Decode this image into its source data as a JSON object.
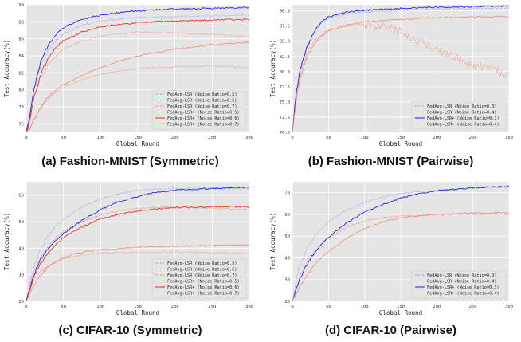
{
  "figure": {
    "colors": {
      "blue": "#1a1ae6",
      "red": "#e0301e",
      "lightblue": "#8aa8f0",
      "salmon": "#f0907c",
      "background": "#e5e5e5"
    },
    "common_xlabel": "Global Round",
    "common_ylabel": "Test Accuracy(%)"
  },
  "chart_data": [
    {
      "type": "line",
      "title": "",
      "caption": "(a) Fashion-MNIST (Symmetric)",
      "xlabel": "Global Round",
      "ylabel": "Test Accuracy(%)",
      "xlim": [
        0,
        300
      ],
      "ylim": [
        75,
        90
      ],
      "xticks": [
        0,
        50,
        100,
        150,
        200,
        250,
        300
      ],
      "yticks": [
        76,
        78,
        80,
        82,
        84,
        86,
        88,
        90
      ],
      "grid": true,
      "legend": "bottom-right",
      "series": [
        {
          "name": "FedAvg-LSR (Noise Ratio=0.5)",
          "color": "#8aa8f0",
          "style": "dashed",
          "x": [
            0,
            5,
            10,
            20,
            30,
            40,
            50,
            75,
            100,
            125,
            150,
            200,
            250,
            300
          ],
          "y": [
            75,
            77,
            80,
            83,
            84.7,
            85.8,
            86.6,
            87.6,
            88.1,
            88.3,
            88.5,
            88.6,
            88.7,
            88.8
          ]
        },
        {
          "name": "FedAvg-LSR (Noise Ratio=0.6)",
          "color": "#f0907c",
          "style": "dashed",
          "x": [
            0,
            5,
            10,
            20,
            30,
            40,
            50,
            75,
            100,
            125,
            150,
            200,
            250,
            300
          ],
          "y": [
            75,
            76.5,
            79,
            81.5,
            83,
            84,
            84.8,
            85.7,
            86.3,
            86.6,
            86.8,
            86.7,
            86.5,
            86.3
          ]
        },
        {
          "name": "FedAvg-LSR (Noise Ratio=0.7)",
          "color": "#f0907c",
          "style": "dashed",
          "x": [
            0,
            5,
            10,
            20,
            30,
            40,
            50,
            75,
            100,
            125,
            150,
            200,
            250,
            300
          ],
          "y": [
            75,
            75.5,
            76.5,
            78,
            79,
            79.7,
            80.3,
            81.2,
            81.8,
            82.2,
            82.5,
            82.7,
            82.8,
            82.6
          ]
        },
        {
          "name": "FedAvg-LSR+ (Noise Ratio=0.5)",
          "color": "#1a1ae6",
          "style": "solid",
          "x": [
            0,
            5,
            10,
            20,
            30,
            40,
            50,
            75,
            100,
            125,
            150,
            200,
            250,
            300
          ],
          "y": [
            75,
            77,
            80,
            83.5,
            85.3,
            86.5,
            87.3,
            88.3,
            88.8,
            89.1,
            89.3,
            89.5,
            89.6,
            89.7
          ]
        },
        {
          "name": "FedAvg-LSR+ (Noise Ratio=0.6)",
          "color": "#e0301e",
          "style": "solid",
          "x": [
            0,
            5,
            10,
            20,
            30,
            40,
            50,
            75,
            100,
            125,
            150,
            200,
            250,
            300
          ],
          "y": [
            75,
            76.5,
            79,
            82,
            83.8,
            85,
            85.8,
            86.8,
            87.4,
            87.7,
            87.9,
            88.1,
            88.2,
            88.3
          ]
        },
        {
          "name": "FedAvg-LSR+ (Noise Ratio=0.7)",
          "color": "#f0907c",
          "style": "solid",
          "x": [
            0,
            5,
            10,
            20,
            30,
            40,
            50,
            75,
            100,
            125,
            150,
            200,
            250,
            300
          ],
          "y": [
            75,
            75.5,
            76.5,
            78,
            79.2,
            80,
            80.6,
            81.7,
            82.6,
            83.4,
            84,
            84.8,
            85.3,
            85.6
          ]
        }
      ]
    },
    {
      "type": "line",
      "title": "",
      "caption": "(b) Fashion-MNIST (Pairwise)",
      "xlabel": "Global Round",
      "ylabel": "Test Accuracy(%)",
      "xlim": [
        0,
        300
      ],
      "ylim": [
        70,
        91
      ],
      "xticks": [
        0,
        50,
        100,
        150,
        200,
        250,
        300
      ],
      "yticks": [
        70.0,
        72.5,
        75.0,
        77.5,
        80.0,
        82.5,
        85.0,
        87.5,
        90.0
      ],
      "grid": true,
      "legend": "bottom-right",
      "series": [
        {
          "name": "FedAvg-LSR (Noise Ratio=0.3)",
          "color": "#8aa8f0",
          "style": "dashed",
          "x": [
            0,
            5,
            10,
            20,
            30,
            40,
            50,
            75,
            100,
            150,
            200,
            250,
            300
          ],
          "y": [
            70,
            76,
            80,
            84,
            86.5,
            88,
            88.8,
            89.5,
            89.8,
            90.1,
            90.3,
            90.4,
            90.5
          ]
        },
        {
          "name": "FedAvg-LSR (Noise Ratio=0.4)",
          "color": "#f0907c",
          "style": "dashed",
          "x": [
            0,
            5,
            10,
            20,
            30,
            50,
            75,
            100,
            125,
            150,
            175,
            200,
            225,
            250,
            275,
            300
          ],
          "y": [
            70,
            75,
            79,
            83,
            85,
            86.8,
            87.5,
            87.8,
            87.5,
            86.5,
            85,
            83.5,
            82.5,
            81,
            80.5,
            79.5
          ]
        },
        {
          "name": "FedAvg-LSR+ (Noise Ratio=0.3)",
          "color": "#1a1ae6",
          "style": "solid",
          "x": [
            0,
            5,
            10,
            20,
            30,
            40,
            50,
            75,
            100,
            150,
            200,
            250,
            300
          ],
          "y": [
            70,
            76,
            80,
            84,
            86.5,
            88.2,
            89,
            89.8,
            90.1,
            90.4,
            90.6,
            90.7,
            90.8
          ]
        },
        {
          "name": "FedAvg-LSR+ (Noise Ratio=0.4)",
          "color": "#f0907c",
          "style": "solid",
          "x": [
            0,
            5,
            10,
            20,
            30,
            40,
            50,
            75,
            100,
            150,
            200,
            250,
            300
          ],
          "y": [
            70,
            75,
            78.5,
            82.5,
            84.5,
            85.8,
            86.7,
            87.7,
            88.2,
            88.6,
            88.9,
            89,
            89.1
          ]
        }
      ]
    },
    {
      "type": "line",
      "title": "",
      "caption": "(c) CIFAR-10 (Symmetric)",
      "xlabel": "Global Round",
      "ylabel": "Test Accuracy(%)",
      "xlim": [
        0,
        300
      ],
      "ylim": [
        20,
        65
      ],
      "xticks": [
        0,
        50,
        100,
        150,
        200,
        250,
        300
      ],
      "yticks": [
        20,
        30,
        40,
        50,
        60
      ],
      "grid": true,
      "legend": "bottom-right",
      "series": [
        {
          "name": "FedAvg-LSR (Noise Ratio=0.5)",
          "color": "#8aa8f0",
          "style": "dashed",
          "x": [
            0,
            5,
            10,
            20,
            30,
            40,
            50,
            75,
            100,
            125,
            150,
            175,
            200,
            250,
            300
          ],
          "y": [
            20,
            27,
            33,
            40,
            45,
            48.5,
            51,
            55.5,
            58.5,
            60.5,
            61.8,
            62.3,
            62.5,
            62.5,
            62.3
          ]
        },
        {
          "name": "FedAvg-LSR (Noise Ratio=0.6)",
          "color": "#f0907c",
          "style": "dashed",
          "x": [
            0,
            5,
            10,
            20,
            30,
            40,
            50,
            75,
            100,
            125,
            150,
            175,
            200,
            250,
            300
          ],
          "y": [
            20,
            26,
            31,
            37,
            41,
            44,
            46.5,
            50,
            52.5,
            54,
            55,
            55.3,
            55.5,
            55,
            54.5
          ]
        },
        {
          "name": "FedAvg-LSR (Noise Ratio=0.7)",
          "color": "#f0907c",
          "style": "dashed",
          "x": [
            0,
            5,
            10,
            20,
            30,
            40,
            50,
            75,
            100,
            150,
            200,
            250,
            300
          ],
          "y": [
            20,
            24,
            28,
            31.5,
            33.5,
            35,
            36,
            37.5,
            38.2,
            38.5,
            38.5,
            38.3,
            38
          ]
        },
        {
          "name": "FedAvg-LSR+ (Noise Ratio=0.5)",
          "color": "#1a1ae6",
          "style": "solid",
          "x": [
            0,
            5,
            10,
            20,
            30,
            40,
            50,
            75,
            100,
            125,
            150,
            175,
            200,
            250,
            300
          ],
          "y": [
            20,
            25,
            30,
            36,
            40,
            43,
            45.5,
            50.5,
            54.5,
            57.5,
            59.5,
            61,
            61.8,
            62.5,
            63
          ]
        },
        {
          "name": "FedAvg-LSR+ (Noise Ratio=0.6)",
          "color": "#e0301e",
          "style": "solid",
          "x": [
            0,
            5,
            10,
            20,
            30,
            40,
            50,
            75,
            100,
            125,
            150,
            175,
            200,
            250,
            300
          ],
          "y": [
            20,
            24.5,
            29,
            34.5,
            38.5,
            41.5,
            44,
            48,
            51,
            52.8,
            54,
            54.8,
            55.2,
            55.5,
            55.6
          ]
        },
        {
          "name": "FedAvg-LSR+ (Noise Ratio=0.7)",
          "color": "#f0907c",
          "style": "solid",
          "x": [
            0,
            5,
            10,
            20,
            30,
            40,
            50,
            75,
            100,
            150,
            200,
            250,
            300
          ],
          "y": [
            20,
            23,
            26,
            30,
            33,
            35,
            36.5,
            38.5,
            39.5,
            40.3,
            40.8,
            41,
            41.2
          ]
        }
      ]
    },
    {
      "type": "line",
      "title": "",
      "caption": "(d) CIFAR-10 (Pairwise)",
      "xlabel": "Global Round",
      "ylabel": "Test Accuracy(%)",
      "xlim": [
        0,
        300
      ],
      "ylim": [
        20,
        75
      ],
      "xticks": [
        0,
        50,
        100,
        150,
        200,
        250,
        300
      ],
      "yticks": [
        20,
        30,
        40,
        50,
        60,
        70
      ],
      "grid": true,
      "legend": "bottom-right",
      "series": [
        {
          "name": "FedAvg-LSR (Noise Ratio=0.3)",
          "color": "#8aa8f0",
          "style": "dashed",
          "x": [
            0,
            5,
            10,
            20,
            30,
            40,
            50,
            75,
            100,
            125,
            150,
            175,
            200,
            250,
            300
          ],
          "y": [
            20,
            29,
            36,
            44,
            49.5,
            53.5,
            56.5,
            62,
            65.5,
            68,
            69.5,
            70.5,
            71.2,
            72,
            72.5
          ]
        },
        {
          "name": "FedAvg-LSR (Noise Ratio=0.4)",
          "color": "#f0907c",
          "style": "dashed",
          "x": [
            0,
            5,
            10,
            20,
            30,
            40,
            50,
            75,
            100,
            125,
            150,
            200,
            250,
            300
          ],
          "y": [
            20,
            26,
            31,
            38,
            42.5,
            46,
            49,
            54,
            57,
            58.5,
            59.3,
            59.8,
            60,
            60
          ]
        },
        {
          "name": "FedAvg-LSR+ (Noise Ratio=0.3)",
          "color": "#1a1ae6",
          "style": "solid",
          "x": [
            0,
            5,
            10,
            20,
            30,
            40,
            50,
            75,
            100,
            125,
            150,
            175,
            200,
            250,
            300
          ],
          "y": [
            20,
            25,
            30,
            37,
            42,
            46,
            49.5,
            56,
            61,
            64.5,
            67.5,
            69.5,
            70.8,
            72.3,
            73
          ]
        },
        {
          "name": "FedAvg-LSR+ (Noise Ratio=0.4)",
          "color": "#f0907c",
          "style": "solid",
          "x": [
            0,
            5,
            10,
            20,
            30,
            40,
            50,
            75,
            100,
            125,
            150,
            200,
            250,
            300
          ],
          "y": [
            20,
            23,
            26.5,
            32,
            36.5,
            40,
            43,
            49,
            53.5,
            56.5,
            58.5,
            60,
            60.5,
            60.8
          ]
        }
      ]
    }
  ]
}
